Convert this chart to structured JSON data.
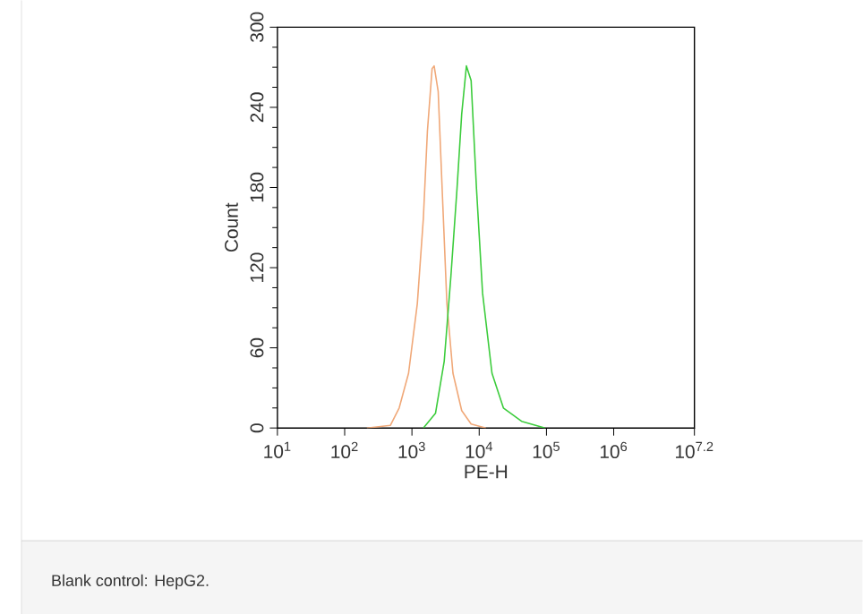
{
  "chart_data": {
    "type": "line",
    "xlabel": "PE-H",
    "ylabel": "Count",
    "log": "x",
    "xlim": [
      10,
      15848931.9
    ],
    "ylim": [
      0,
      300
    ],
    "xticks": [
      {
        "value": 10,
        "label": "10$^{1}$"
      },
      {
        "value": 100,
        "label": "10$^{2}$"
      },
      {
        "value": 1000,
        "label": "10$^{3}$"
      },
      {
        "value": 10000,
        "label": "10$^{4}$"
      },
      {
        "value": 100000,
        "label": "10$^{5}$"
      },
      {
        "value": 1000000,
        "label": "10$^{6}$"
      },
      {
        "value": 15848931.9,
        "label": "10$^{7.2}$"
      }
    ],
    "yticks": [
      0,
      60,
      120,
      180,
      240,
      300
    ],
    "series": [
      {
        "color": "#f0a878",
        "x": [
          214,
          479,
          646,
          891,
          1202,
          1479,
          1698,
          1995,
          2138,
          2455,
          2884,
          3311,
          4074,
          5495,
          7586,
          12589
        ],
        "values": [
          0,
          2,
          15,
          41,
          93,
          157,
          222,
          269,
          271,
          252,
          166,
          93,
          41,
          13,
          3,
          0
        ]
      },
      {
        "color": "#3ccc3c",
        "x": [
          1479,
          2239,
          3020,
          3802,
          4677,
          5495,
          6457,
          7586,
          9120,
          11220,
          15488,
          22909,
          42658,
          95499
        ],
        "values": [
          0,
          11,
          50,
          114,
          179,
          235,
          271,
          260,
          179,
          101,
          41,
          15,
          5,
          0
        ]
      }
    ],
    "annotations": [
      "Blank control: HepG2."
    ]
  }
}
